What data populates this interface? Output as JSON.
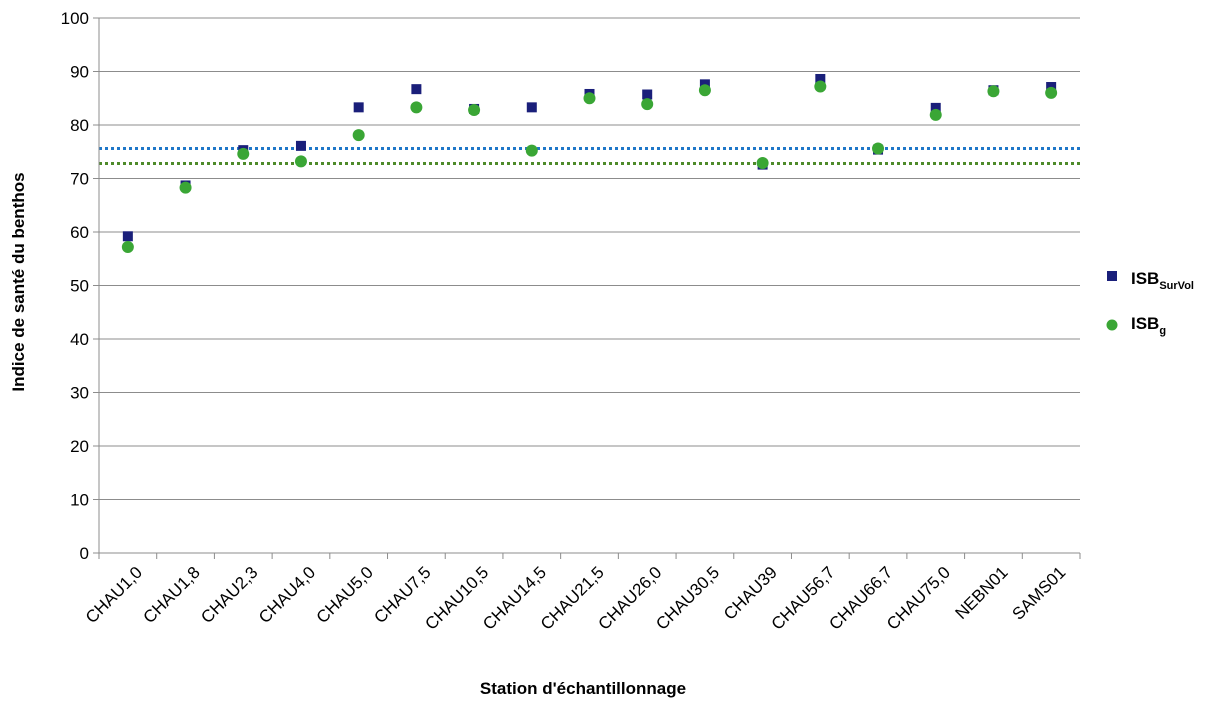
{
  "chart_data": {
    "type": "scatter",
    "xlabel": "Station d'échantillonnage",
    "ylabel": "Indice de santé du benthos",
    "ylim": [
      0,
      100
    ],
    "yticks": [
      0,
      10,
      20,
      30,
      40,
      50,
      60,
      70,
      80,
      90,
      100
    ],
    "grid": "horizontal",
    "legend_position": "right",
    "categories": [
      "CHAU1,0",
      "CHAU1,8",
      "CHAU2,3",
      "CHAU4,0",
      "CHAU5,0",
      "CHAU7,5",
      "CHAU10,5",
      "CHAU14,5",
      "CHAU21,5",
      "CHAU26,0",
      "CHAU30,5",
      "CHAU39",
      "CHAU56,7",
      "CHAU66,7",
      "CHAU75,0",
      "NEBN01",
      "SAMS01"
    ],
    "series": [
      {
        "name": "ISB",
        "name_subscript": "SurVol",
        "marker": "square",
        "color": "#1a1f7a",
        "values": [
          59.2,
          68.7,
          75.3,
          76.1,
          83.3,
          86.7,
          83.0,
          83.3,
          85.8,
          85.7,
          87.6,
          72.6,
          88.6,
          75.4,
          83.2,
          86.5,
          87.1
        ],
        "reference_line": 75.6,
        "reference_color": "#1f77c8"
      },
      {
        "name": "ISB",
        "name_subscript": "g",
        "marker": "circle",
        "color": "#3aa635",
        "values": [
          57.2,
          68.3,
          74.6,
          73.2,
          78.1,
          83.3,
          82.8,
          75.2,
          85.0,
          83.9,
          86.5,
          72.9,
          87.2,
          75.6,
          81.9,
          86.3,
          86.0
        ],
        "reference_line": 72.8,
        "reference_color": "#4e8a2a"
      }
    ]
  }
}
